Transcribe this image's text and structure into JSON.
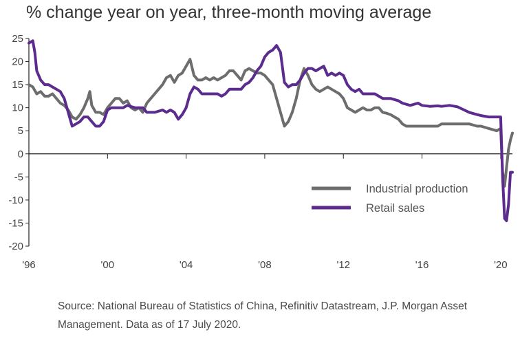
{
  "chart_data": {
    "type": "line",
    "title": "% change year on year, three-month moving average",
    "xlabel": "",
    "ylabel": "",
    "ylim": [
      -20,
      25
    ],
    "xlim": [
      1996.0,
      2020.6
    ],
    "y_ticks": [
      "25",
      "20",
      "15",
      "10",
      "5",
      "0",
      "-5",
      "-10",
      "-15",
      "-20"
    ],
    "x_ticks": [
      {
        "x": 1996,
        "label": "'96"
      },
      {
        "x": 2000,
        "label": "'00"
      },
      {
        "x": 2004,
        "label": "'04"
      },
      {
        "x": 2008,
        "label": "'08"
      },
      {
        "x": 2012,
        "label": "'12"
      },
      {
        "x": 2016,
        "label": "'16"
      },
      {
        "x": 2020,
        "label": "'20"
      }
    ],
    "grid": false,
    "legend_position": "bottom-right",
    "series": [
      {
        "name": "Industrial production",
        "color": "#6d6d6d",
        "points": [
          [
            1996.0,
            15
          ],
          [
            1996.2,
            14.5
          ],
          [
            1996.4,
            13
          ],
          [
            1996.6,
            13.5
          ],
          [
            1996.8,
            12.5
          ],
          [
            1997.0,
            12.5
          ],
          [
            1997.2,
            13
          ],
          [
            1997.4,
            12
          ],
          [
            1997.6,
            11
          ],
          [
            1997.8,
            10.5
          ],
          [
            1998.0,
            9.5
          ],
          [
            1998.2,
            8
          ],
          [
            1998.4,
            7.5
          ],
          [
            1998.6,
            8.5
          ],
          [
            1998.8,
            10
          ],
          [
            1999.0,
            12
          ],
          [
            1999.1,
            13.5
          ],
          [
            1999.2,
            10.5
          ],
          [
            1999.4,
            9
          ],
          [
            1999.6,
            9
          ],
          [
            1999.8,
            8.5
          ],
          [
            2000.0,
            10
          ],
          [
            2000.2,
            11
          ],
          [
            2000.4,
            12
          ],
          [
            2000.6,
            12
          ],
          [
            2000.8,
            11
          ],
          [
            2001.0,
            11.5
          ],
          [
            2001.2,
            10
          ],
          [
            2001.4,
            9.5
          ],
          [
            2001.6,
            10
          ],
          [
            2001.8,
            9
          ],
          [
            2002.0,
            11
          ],
          [
            2002.2,
            12
          ],
          [
            2002.4,
            13
          ],
          [
            2002.6,
            14
          ],
          [
            2002.8,
            15
          ],
          [
            2003.0,
            16.5
          ],
          [
            2003.2,
            17
          ],
          [
            2003.4,
            15.5
          ],
          [
            2003.6,
            17
          ],
          [
            2003.8,
            17.5
          ],
          [
            2004.0,
            19
          ],
          [
            2004.2,
            20.5
          ],
          [
            2004.4,
            17
          ],
          [
            2004.6,
            16
          ],
          [
            2004.8,
            16
          ],
          [
            2005.0,
            16.5
          ],
          [
            2005.2,
            16
          ],
          [
            2005.4,
            16.5
          ],
          [
            2005.6,
            16
          ],
          [
            2005.8,
            16.5
          ],
          [
            2006.0,
            17
          ],
          [
            2006.2,
            18
          ],
          [
            2006.4,
            18
          ],
          [
            2006.6,
            17
          ],
          [
            2006.8,
            16
          ],
          [
            2007.0,
            18
          ],
          [
            2007.2,
            18.5
          ],
          [
            2007.4,
            18
          ],
          [
            2007.6,
            17.5
          ],
          [
            2007.8,
            17.5
          ],
          [
            2008.0,
            17
          ],
          [
            2008.2,
            16
          ],
          [
            2008.4,
            15
          ],
          [
            2008.6,
            12
          ],
          [
            2008.8,
            9
          ],
          [
            2009.0,
            6
          ],
          [
            2009.2,
            7
          ],
          [
            2009.4,
            9
          ],
          [
            2009.6,
            12
          ],
          [
            2009.8,
            16
          ],
          [
            2010.0,
            18.5
          ],
          [
            2010.2,
            17
          ],
          [
            2010.4,
            15
          ],
          [
            2010.6,
            14
          ],
          [
            2010.8,
            13.5
          ],
          [
            2011.0,
            14
          ],
          [
            2011.2,
            14.5
          ],
          [
            2011.4,
            14
          ],
          [
            2011.6,
            13.5
          ],
          [
            2011.8,
            13
          ],
          [
            2012.0,
            12
          ],
          [
            2012.2,
            10
          ],
          [
            2012.4,
            9.5
          ],
          [
            2012.6,
            9
          ],
          [
            2012.8,
            9.5
          ],
          [
            2013.0,
            10
          ],
          [
            2013.2,
            9.5
          ],
          [
            2013.4,
            9.5
          ],
          [
            2013.6,
            10
          ],
          [
            2013.8,
            10
          ],
          [
            2014.0,
            9
          ],
          [
            2014.2,
            8.8
          ],
          [
            2014.4,
            8.5
          ],
          [
            2014.6,
            8
          ],
          [
            2014.8,
            7.5
          ],
          [
            2015.0,
            6.5
          ],
          [
            2015.2,
            6
          ],
          [
            2015.4,
            6
          ],
          [
            2015.6,
            6
          ],
          [
            2015.8,
            6
          ],
          [
            2016.0,
            6
          ],
          [
            2016.4,
            6
          ],
          [
            2016.8,
            6
          ],
          [
            2017.0,
            6.5
          ],
          [
            2017.4,
            6.5
          ],
          [
            2017.8,
            6.5
          ],
          [
            2018.0,
            6.5
          ],
          [
            2018.4,
            6.5
          ],
          [
            2018.8,
            6
          ],
          [
            2019.0,
            6
          ],
          [
            2019.4,
            5.5
          ],
          [
            2019.8,
            5
          ],
          [
            2020.0,
            5.5
          ],
          [
            2020.1,
            -4
          ],
          [
            2020.2,
            -7
          ],
          [
            2020.3,
            -3
          ],
          [
            2020.4,
            1
          ],
          [
            2020.5,
            3
          ],
          [
            2020.6,
            4.5
          ]
        ]
      },
      {
        "name": "Retail sales",
        "color": "#5b2c8e",
        "points": [
          [
            1996.0,
            24
          ],
          [
            1996.2,
            24.5
          ],
          [
            1996.3,
            22
          ],
          [
            1996.4,
            18
          ],
          [
            1996.6,
            16
          ],
          [
            1996.8,
            15
          ],
          [
            1997.0,
            15
          ],
          [
            1997.2,
            14.5
          ],
          [
            1997.4,
            14
          ],
          [
            1997.6,
            13.5
          ],
          [
            1997.8,
            12
          ],
          [
            1998.0,
            9
          ],
          [
            1998.2,
            6
          ],
          [
            1998.4,
            6.5
          ],
          [
            1998.6,
            7
          ],
          [
            1998.8,
            8
          ],
          [
            1999.0,
            8
          ],
          [
            1999.2,
            7
          ],
          [
            1999.4,
            6
          ],
          [
            1999.6,
            6
          ],
          [
            1999.8,
            7
          ],
          [
            2000.0,
            9.5
          ],
          [
            2000.2,
            10
          ],
          [
            2000.4,
            10
          ],
          [
            2000.8,
            10
          ],
          [
            2001.0,
            10.5
          ],
          [
            2001.4,
            10
          ],
          [
            2001.8,
            10
          ],
          [
            2002.0,
            9
          ],
          [
            2002.4,
            9
          ],
          [
            2002.8,
            9.5
          ],
          [
            2003.0,
            9
          ],
          [
            2003.2,
            9.5
          ],
          [
            2003.4,
            9
          ],
          [
            2003.6,
            7.5
          ],
          [
            2003.8,
            8.5
          ],
          [
            2004.0,
            10
          ],
          [
            2004.2,
            13
          ],
          [
            2004.4,
            14.5
          ],
          [
            2004.6,
            14
          ],
          [
            2004.8,
            13
          ],
          [
            2005.0,
            13
          ],
          [
            2005.2,
            13
          ],
          [
            2005.4,
            13
          ],
          [
            2005.6,
            13
          ],
          [
            2005.8,
            12.5
          ],
          [
            2006.0,
            13
          ],
          [
            2006.2,
            14
          ],
          [
            2006.4,
            14
          ],
          [
            2006.6,
            14
          ],
          [
            2006.8,
            14
          ],
          [
            2007.0,
            15
          ],
          [
            2007.2,
            15.5
          ],
          [
            2007.4,
            16.5
          ],
          [
            2007.6,
            18
          ],
          [
            2007.8,
            19
          ],
          [
            2008.0,
            21
          ],
          [
            2008.2,
            22
          ],
          [
            2008.4,
            22.5
          ],
          [
            2008.6,
            23.5
          ],
          [
            2008.8,
            22
          ],
          [
            2009.0,
            15.5
          ],
          [
            2009.2,
            14.5
          ],
          [
            2009.4,
            15
          ],
          [
            2009.6,
            15
          ],
          [
            2009.8,
            16
          ],
          [
            2010.0,
            17.5
          ],
          [
            2010.2,
            18.5
          ],
          [
            2010.4,
            18.5
          ],
          [
            2010.6,
            18
          ],
          [
            2010.8,
            18.5
          ],
          [
            2011.0,
            19
          ],
          [
            2011.2,
            17
          ],
          [
            2011.4,
            17.5
          ],
          [
            2011.6,
            17
          ],
          [
            2011.8,
            17.5
          ],
          [
            2012.0,
            17
          ],
          [
            2012.2,
            15
          ],
          [
            2012.4,
            14
          ],
          [
            2012.6,
            13.5
          ],
          [
            2012.8,
            14
          ],
          [
            2013.0,
            13
          ],
          [
            2013.2,
            13
          ],
          [
            2013.4,
            13
          ],
          [
            2013.6,
            13
          ],
          [
            2013.8,
            12.5
          ],
          [
            2014.0,
            12
          ],
          [
            2014.4,
            12
          ],
          [
            2014.8,
            11.5
          ],
          [
            2015.0,
            11
          ],
          [
            2015.4,
            10.5
          ],
          [
            2015.8,
            11
          ],
          [
            2016.0,
            10.5
          ],
          [
            2016.4,
            10.3
          ],
          [
            2016.8,
            10.4
          ],
          [
            2017.0,
            10.3
          ],
          [
            2017.4,
            10.5
          ],
          [
            2017.8,
            10.2
          ],
          [
            2018.0,
            9.8
          ],
          [
            2018.4,
            9
          ],
          [
            2018.8,
            8.5
          ],
          [
            2019.0,
            8.3
          ],
          [
            2019.4,
            8
          ],
          [
            2019.8,
            8
          ],
          [
            2020.0,
            8
          ],
          [
            2020.1,
            -5
          ],
          [
            2020.2,
            -14
          ],
          [
            2020.3,
            -14.5
          ],
          [
            2020.4,
            -11
          ],
          [
            2020.5,
            -4
          ],
          [
            2020.6,
            -4
          ]
        ]
      }
    ]
  },
  "source_text": "Source: National Bureau of Statistics of China, Refinitiv Datastream, J.P. Morgan Asset Management. Data as of 17 July 2020."
}
